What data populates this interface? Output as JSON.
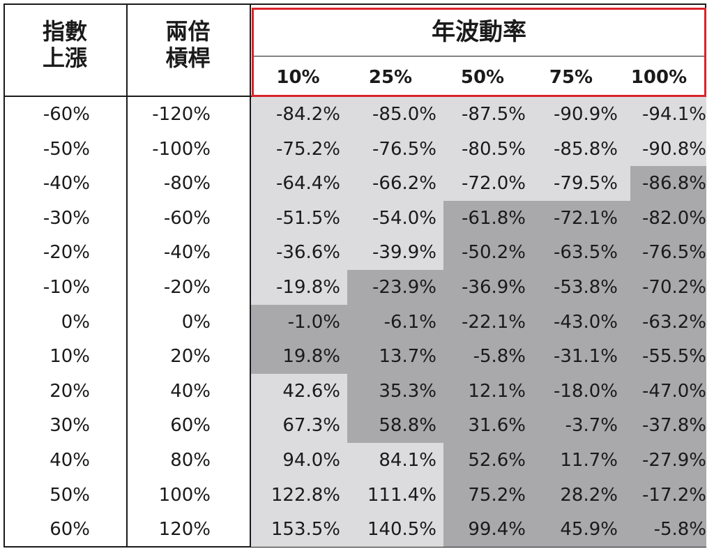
{
  "header": {
    "col1_line1": "指數",
    "col1_line2": "上漲",
    "col2_line1": "兩倍",
    "col2_line2": "槓桿",
    "volatility_title": "年波動率",
    "volatility_columns": [
      "10%",
      "25%",
      "50%",
      "75%",
      "100%"
    ]
  },
  "colors": {
    "highlight_border": "#d8232a",
    "shade_light": "#dcdcde",
    "shade_dark": "#a9a9ac"
  },
  "rows": [
    {
      "index": "-60%",
      "leverage": "-120%",
      "values": [
        "-84.2%",
        "-85.0%",
        "-87.5%",
        "-90.9%",
        "-94.1%"
      ],
      "shade": [
        "light",
        "light",
        "light",
        "light",
        "light"
      ]
    },
    {
      "index": "-50%",
      "leverage": "-100%",
      "values": [
        "-75.2%",
        "-76.5%",
        "-80.5%",
        "-85.8%",
        "-90.8%"
      ],
      "shade": [
        "light",
        "light",
        "light",
        "light",
        "light"
      ]
    },
    {
      "index": "-40%",
      "leverage": "-80%",
      "values": [
        "-64.4%",
        "-66.2%",
        "-72.0%",
        "-79.5%",
        "-86.8%"
      ],
      "shade": [
        "light",
        "light",
        "light",
        "light",
        "dark"
      ]
    },
    {
      "index": "-30%",
      "leverage": "-60%",
      "values": [
        "-51.5%",
        "-54.0%",
        "-61.8%",
        "-72.1%",
        "-82.0%"
      ],
      "shade": [
        "light",
        "light",
        "dark",
        "dark",
        "dark"
      ]
    },
    {
      "index": "-20%",
      "leverage": "-40%",
      "values": [
        "-36.6%",
        "-39.9%",
        "-50.2%",
        "-63.5%",
        "-76.5%"
      ],
      "shade": [
        "light",
        "light",
        "dark",
        "dark",
        "dark"
      ]
    },
    {
      "index": "-10%",
      "leverage": "-20%",
      "values": [
        "-19.8%",
        "-23.9%",
        "-36.9%",
        "-53.8%",
        "-70.2%"
      ],
      "shade": [
        "light",
        "dark",
        "dark",
        "dark",
        "dark"
      ]
    },
    {
      "index": "0%",
      "leverage": "0%",
      "values": [
        "-1.0%",
        "-6.1%",
        "-22.1%",
        "-43.0%",
        "-63.2%"
      ],
      "shade": [
        "dark",
        "dark",
        "dark",
        "dark",
        "dark"
      ]
    },
    {
      "index": "10%",
      "leverage": "20%",
      "values": [
        "19.8%",
        "13.7%",
        "-5.8%",
        "-31.1%",
        "-55.5%"
      ],
      "shade": [
        "dark",
        "dark",
        "dark",
        "dark",
        "dark"
      ]
    },
    {
      "index": "20%",
      "leverage": "40%",
      "values": [
        "42.6%",
        "35.3%",
        "12.1%",
        "-18.0%",
        "-47.0%"
      ],
      "shade": [
        "light",
        "dark",
        "dark",
        "dark",
        "dark"
      ]
    },
    {
      "index": "30%",
      "leverage": "60%",
      "values": [
        "67.3%",
        "58.8%",
        "31.6%",
        "-3.7%",
        "-37.8%"
      ],
      "shade": [
        "light",
        "dark",
        "dark",
        "dark",
        "dark"
      ]
    },
    {
      "index": "40%",
      "leverage": "80%",
      "values": [
        "94.0%",
        "84.1%",
        "52.6%",
        "11.7%",
        "-27.9%"
      ],
      "shade": [
        "light",
        "light",
        "dark",
        "dark",
        "dark"
      ]
    },
    {
      "index": "50%",
      "leverage": "100%",
      "values": [
        "122.8%",
        "111.4%",
        "75.2%",
        "28.2%",
        "-17.2%"
      ],
      "shade": [
        "light",
        "light",
        "dark",
        "dark",
        "dark"
      ]
    },
    {
      "index": "60%",
      "leverage": "120%",
      "values": [
        "153.5%",
        "140.5%",
        "99.4%",
        "45.9%",
        "-5.8%"
      ],
      "shade": [
        "light",
        "light",
        "dark",
        "dark",
        "dark"
      ]
    }
  ]
}
